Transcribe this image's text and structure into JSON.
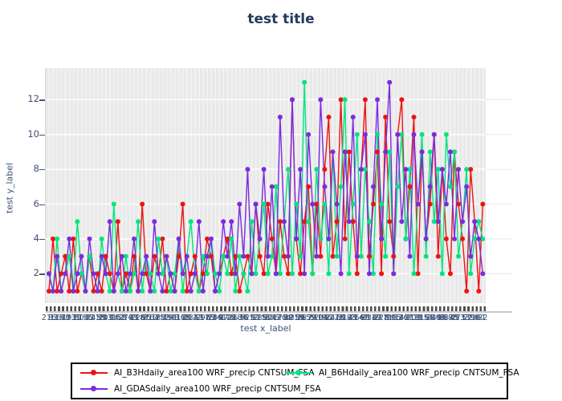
{
  "title": "test title",
  "colors": {
    "red_series": "#ee1212",
    "green_series": "#00e57f",
    "purple_series": "#7d2ae0",
    "title_text": "#24395c",
    "axis_text": "#3b527a",
    "plot_background": "#e9e9e9",
    "gridline": "#fdfdfd",
    "tick_band": "#4d4d4d",
    "legend_border": "#000000"
  },
  "chart_data": {
    "type": "line",
    "title": "test title",
    "xlabel": "test x_label",
    "ylabel": "test y_label",
    "yticks": [
      2,
      4,
      6,
      8,
      10,
      12
    ],
    "ylim": [
      0.3,
      13.8
    ],
    "grid": true,
    "marker": "circle",
    "legend_position": "bottom",
    "x": [
      "216",
      "83",
      "115",
      "67",
      "48",
      "193",
      "231",
      "27",
      "304",
      "156",
      "72",
      "245",
      "118",
      "39",
      "207",
      "331",
      "94",
      "162",
      "58",
      "279",
      "143",
      "31",
      "226",
      "187",
      "95",
      "310",
      "64",
      "138",
      "252",
      "79",
      "191",
      "43",
      "317",
      "168",
      "86",
      "234",
      "122",
      "51",
      "298",
      "175",
      "63",
      "209",
      "341",
      "97",
      "146",
      "28",
      "263",
      "184",
      "76",
      "329",
      "112",
      "57",
      "238",
      "151",
      "92",
      "306",
      "47",
      "173",
      "264",
      "88",
      "135",
      "219",
      "36",
      "287",
      "159",
      "74",
      "323",
      "104",
      "196",
      "52",
      "241",
      "128",
      "69",
      "312",
      "183",
      "41",
      "256",
      "147",
      "98",
      "334",
      "119",
      "62",
      "228",
      "171",
      "84",
      "295",
      "53",
      "142",
      "267",
      "91",
      "203",
      "38",
      "316",
      "154",
      "78",
      "249",
      "109",
      "66",
      "337",
      "188",
      "45",
      "271",
      "133",
      "57",
      "224",
      "96",
      "161",
      "82"
    ],
    "series": [
      {
        "name": "AI_B3Hdaily_area100 WRF_precip CNTSUM_FSA",
        "color": "#ee1212",
        "values": [
          1,
          4,
          1,
          2,
          3,
          1,
          4,
          1,
          2,
          1,
          3,
          1,
          2,
          1,
          3,
          2,
          1,
          5,
          1,
          2,
          1,
          3,
          1,
          6,
          2,
          1,
          3,
          2,
          4,
          1,
          2,
          1,
          3,
          6,
          1,
          2,
          3,
          1,
          2,
          4,
          3,
          1,
          2,
          3,
          4,
          2,
          3,
          1,
          2,
          3,
          2,
          6,
          3,
          2,
          6,
          4,
          2,
          5,
          3,
          2,
          12,
          4,
          2,
          5,
          7,
          2,
          6,
          3,
          8,
          11,
          3,
          5,
          12,
          4,
          9,
          5,
          2,
          8,
          12,
          3,
          6,
          9,
          2,
          11,
          5,
          3,
          10,
          12,
          4,
          7,
          11,
          2,
          9,
          4,
          6,
          10,
          3,
          8,
          4,
          2,
          9,
          6,
          4,
          1,
          8,
          5,
          1,
          6
        ]
      },
      {
        "name": "AI_B6Hdaily_area100 WRF_precip CNTSUM_FSA",
        "color": "#00e57f",
        "values": [
          2,
          1,
          4,
          1,
          2,
          3,
          1,
          5,
          2,
          1,
          3,
          2,
          1,
          4,
          2,
          1,
          6,
          2,
          1,
          3,
          1,
          2,
          5,
          1,
          3,
          2,
          1,
          4,
          2,
          3,
          1,
          2,
          4,
          1,
          3,
          5,
          2,
          1,
          3,
          2,
          4,
          2,
          1,
          3,
          2,
          4,
          1,
          3,
          2,
          1,
          5,
          2,
          4,
          6,
          2,
          3,
          7,
          2,
          5,
          8,
          2,
          6,
          3,
          13,
          5,
          2,
          8,
          4,
          6,
          2,
          9,
          3,
          7,
          12,
          2,
          6,
          10,
          3,
          8,
          5,
          2,
          10,
          6,
          3,
          9,
          2,
          7,
          10,
          4,
          8,
          2,
          6,
          10,
          3,
          9,
          5,
          8,
          2,
          10,
          7,
          9,
          3,
          5,
          8,
          2,
          4,
          5,
          4
        ]
      },
      {
        "name": "AI_GDASdaily_area100 WRF_precip CNTSUM_FSA",
        "color": "#7d2ae0",
        "values": [
          2,
          1,
          3,
          1,
          2,
          4,
          1,
          2,
          3,
          1,
          4,
          2,
          1,
          3,
          2,
          5,
          1,
          2,
          3,
          1,
          2,
          4,
          1,
          2,
          3,
          1,
          5,
          2,
          1,
          3,
          2,
          1,
          4,
          2,
          3,
          1,
          2,
          5,
          1,
          3,
          4,
          1,
          2,
          5,
          3,
          5,
          2,
          6,
          3,
          8,
          2,
          6,
          4,
          8,
          3,
          7,
          2,
          11,
          5,
          3,
          12,
          4,
          8,
          2,
          10,
          6,
          3,
          12,
          7,
          4,
          9,
          6,
          2,
          9,
          5,
          11,
          3,
          8,
          10,
          2,
          7,
          12,
          4,
          9,
          13,
          2,
          10,
          5,
          8,
          3,
          10,
          6,
          9,
          4,
          7,
          10,
          5,
          8,
          6,
          9,
          4,
          8,
          5,
          7,
          3,
          5,
          4,
          2
        ]
      }
    ]
  }
}
